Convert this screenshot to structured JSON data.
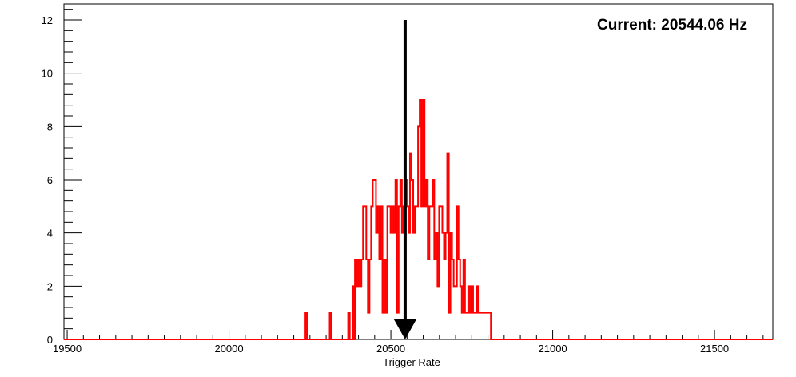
{
  "chart_data": {
    "type": "histogram",
    "title": "",
    "xlabel": "Trigger Rate",
    "ylabel": "",
    "xlim": [
      19490,
      21680
    ],
    "ylim": [
      0,
      12.6
    ],
    "x_ticks": [
      19500,
      20000,
      20500,
      21000,
      21500
    ],
    "y_ticks": [
      0,
      2,
      4,
      6,
      8,
      10,
      12
    ],
    "grid": false,
    "annotation": "Current: 20544.06 Hz",
    "marker_value": 20544.06,
    "marker_top": 12,
    "colors": {
      "series": "#ff0000",
      "marker": "#000000",
      "axis": "#000000"
    },
    "series": {
      "x": [
        20236,
        20311,
        20368,
        20383,
        20389,
        20394,
        20399,
        20404,
        20409,
        20414,
        20419,
        20424,
        20429,
        20434,
        20439,
        20444,
        20449,
        20454,
        20459,
        20464,
        20469,
        20474,
        20479,
        20484,
        20489,
        20494,
        20499,
        20504,
        20509,
        20514,
        20519,
        20524,
        20529,
        20534,
        20539,
        20544,
        20549,
        20554,
        20559,
        20564,
        20569,
        20574,
        20579,
        20584,
        20589,
        20594,
        20599,
        20604,
        20609,
        20614,
        20619,
        20624,
        20629,
        20634,
        20639,
        20644,
        20649,
        20654,
        20659,
        20664,
        20669,
        20674,
        20679,
        20684,
        20689,
        20694,
        20699,
        20704,
        20709,
        20714,
        20719,
        20724,
        20729,
        20734,
        20739,
        20744,
        20749,
        20754,
        20759,
        20764,
        20769,
        20774,
        20779,
        20784,
        20789,
        20794,
        20799,
        20804
      ],
      "values": [
        1,
        1,
        1,
        2,
        3,
        2,
        3,
        2,
        3,
        5,
        5,
        3,
        1,
        3,
        5,
        6,
        6,
        4,
        5,
        3,
        5,
        1,
        3,
        1,
        5,
        5,
        4,
        5,
        4,
        6,
        1,
        5,
        6,
        4,
        5,
        6,
        5,
        4,
        7,
        6,
        4,
        5,
        5,
        8,
        9,
        5,
        9,
        5,
        6,
        3,
        5,
        5,
        6,
        3,
        4,
        2,
        5,
        5,
        4,
        3,
        4,
        7,
        1,
        4,
        3,
        2,
        2,
        5,
        3,
        2,
        1,
        3,
        1,
        1,
        2,
        1,
        2,
        1,
        1,
        2,
        1,
        1,
        1,
        1,
        1,
        1,
        1,
        1
      ]
    }
  }
}
